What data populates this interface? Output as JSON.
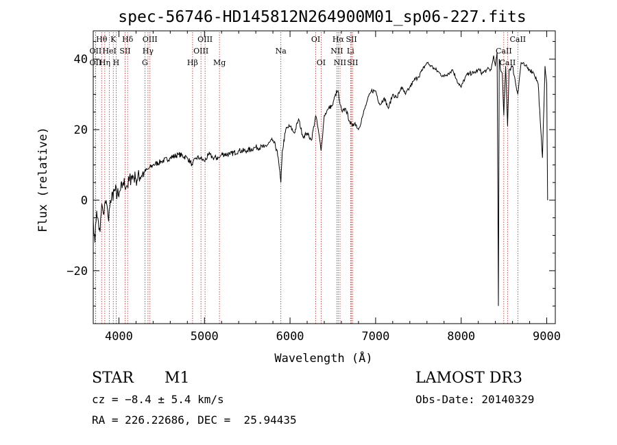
{
  "chart_data": {
    "type": "line",
    "title": "spec-56746-HD145812N264900M01_sp06-227.fits",
    "xlabel": "Wavelength (Å)",
    "ylabel": "Flux (relative)",
    "xlim": [
      3700,
      9100
    ],
    "ylim": [
      -35,
      48
    ],
    "xticks": [
      4000,
      5000,
      6000,
      7000,
      8000,
      9000
    ],
    "yticks": [
      -20,
      0,
      20,
      40
    ],
    "grid": false,
    "line_color": "#000000",
    "marker_color": "#b22222",
    "series": [
      {
        "name": "spectrum",
        "x": [
          3700,
          3720,
          3740,
          3760,
          3780,
          3800,
          3820,
          3850,
          3880,
          3900,
          3950,
          4000,
          4050,
          4100,
          4150,
          4200,
          4300,
          4350,
          4400,
          4500,
          4600,
          4700,
          4800,
          4860,
          4900,
          4950,
          5000,
          5050,
          5100,
          5175,
          5200,
          5300,
          5400,
          5500,
          5600,
          5700,
          5800,
          5850,
          5893,
          5910,
          5950,
          6000,
          6050,
          6100,
          6150,
          6200,
          6250,
          6300,
          6330,
          6363,
          6400,
          6450,
          6500,
          6530,
          6560,
          6585,
          6610,
          6650,
          6700,
          6730,
          6760,
          6800,
          6850,
          6900,
          6950,
          7000,
          7050,
          7100,
          7150,
          7200,
          7250,
          7300,
          7350,
          7400,
          7450,
          7500,
          7550,
          7600,
          7650,
          7700,
          7750,
          7800,
          7850,
          7900,
          7950,
          8000,
          8050,
          8100,
          8150,
          8200,
          8250,
          8300,
          8350,
          8380,
          8400,
          8420,
          8435,
          8445,
          8460,
          8480,
          8498,
          8520,
          8542,
          8560,
          8600,
          8662,
          8700,
          8750,
          8800,
          8850,
          8900,
          8930,
          8950,
          8980,
          9000,
          9010
        ],
        "y": [
          -5,
          -12,
          -3,
          -6,
          -9,
          -1,
          -4,
          0,
          -6,
          0,
          3,
          1,
          5,
          4,
          7,
          6,
          8,
          9,
          10,
          11,
          12,
          13,
          12,
          10,
          12,
          12,
          11,
          13,
          12,
          12,
          13,
          13,
          14,
          14,
          15,
          15,
          17,
          14,
          5,
          14,
          20,
          21,
          19,
          23,
          18,
          19,
          17,
          24,
          20,
          14,
          24,
          26,
          27,
          30,
          31,
          27,
          25,
          26,
          22,
          21,
          22,
          20,
          24,
          28,
          31,
          31,
          27,
          29,
          26,
          30,
          29,
          32,
          30,
          32,
          34,
          35,
          37,
          39,
          38,
          37,
          36,
          35,
          36,
          37,
          34,
          32,
          35,
          36,
          36,
          37,
          36,
          37,
          37,
          41,
          38,
          42,
          -30,
          40,
          37,
          36,
          24,
          38,
          21,
          37,
          38,
          30,
          39,
          38,
          37,
          36,
          33,
          20,
          12,
          38,
          33,
          0
        ]
      }
    ],
    "line_markers": [
      {
        "label": "Hθ",
        "x": 3798,
        "row": 0
      },
      {
        "label": "OII",
        "x": 3727,
        "row": 1
      },
      {
        "label": "OII",
        "x": 3727,
        "row": 2
      },
      {
        "label": "HeI",
        "x": 3889,
        "row": 1
      },
      {
        "label": "Hη",
        "x": 3835,
        "row": 2
      },
      {
        "label": "K",
        "x": 3934,
        "row": 0
      },
      {
        "label": "H",
        "x": 3968,
        "row": 2
      },
      {
        "label": "SII",
        "x": 4072,
        "row": 1
      },
      {
        "label": "Hδ",
        "x": 4102,
        "row": 0
      },
      {
        "label": "OIII",
        "x": 4363,
        "row": 0
      },
      {
        "label": "Hγ",
        "x": 4340,
        "row": 1
      },
      {
        "label": "G",
        "x": 4304,
        "row": 2
      },
      {
        "label": "Hβ",
        "x": 4861,
        "row": 2
      },
      {
        "label": "OIII",
        "x": 5007,
        "row": 0
      },
      {
        "label": "OIII",
        "x": 4959,
        "row": 1
      },
      {
        "label": "Mg",
        "x": 5175,
        "row": 2
      },
      {
        "label": "Na",
        "x": 5893,
        "row": 1
      },
      {
        "label": "OI",
        "x": 6300,
        "row": 0
      },
      {
        "label": "OI",
        "x": 6363,
        "row": 2
      },
      {
        "label": "Hα",
        "x": 6563,
        "row": 0
      },
      {
        "label": "NII",
        "x": 6548,
        "row": 1
      },
      {
        "label": "NII",
        "x": 6584,
        "row": 2
      },
      {
        "label": "SII",
        "x": 6717,
        "row": 0
      },
      {
        "label": "Li",
        "x": 6707,
        "row": 1
      },
      {
        "label": "SII",
        "x": 6731,
        "row": 2
      },
      {
        "label": "CaII",
        "x": 8662,
        "row": 0
      },
      {
        "label": "CaII",
        "x": 8498,
        "row": 1
      },
      {
        "label": "CaII",
        "x": 8542,
        "row": 2
      }
    ]
  },
  "info": {
    "object_class": "STAR",
    "subclass": "M1",
    "survey": "LAMOST DR3",
    "redshift": "cz = −8.4 ± 5.4 km/s",
    "obs_date": "Obs-Date: 20140329",
    "coords": "RA = 226.22686, DEC =  25.94435"
  }
}
